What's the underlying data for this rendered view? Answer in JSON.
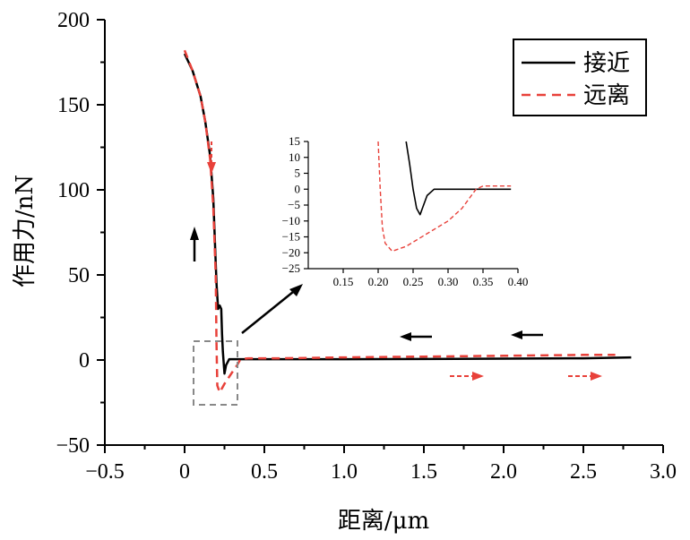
{
  "chart_data": [
    {
      "type": "line",
      "xlabel": "距离/μm",
      "ylabel": "作用力/nN",
      "xlim": [
        -0.5,
        3.0
      ],
      "ylim": [
        -50,
        200
      ],
      "xticks": [
        "−0.5",
        "0",
        "0.5",
        "1.0",
        "1.5",
        "2.0",
        "2.5",
        "3.0"
      ],
      "yticks": [
        "−50",
        "0",
        "50",
        "100",
        "150",
        "200"
      ],
      "legend": {
        "position": "top-right",
        "entries": [
          "接近",
          "远离"
        ]
      },
      "series": [
        {
          "name": "接近",
          "color": "#000000",
          "style": "solid",
          "x": [
            0.0,
            0.05,
            0.1,
            0.13,
            0.16,
            0.18,
            0.19,
            0.2,
            0.21,
            0.22,
            0.23,
            0.235,
            0.24,
            0.25,
            0.26,
            0.28,
            0.35,
            0.6,
            1.0,
            1.5,
            2.0,
            2.5,
            2.8
          ],
          "y": [
            180,
            170,
            155,
            140,
            120,
            95,
            70,
            45,
            30,
            32,
            30,
            15,
            5,
            -8,
            -3,
            0.5,
            0.5,
            0.5,
            0.5,
            0.6,
            0.8,
            1.0,
            1.5
          ]
        },
        {
          "name": "远离",
          "color": "#e8413a",
          "style": "dashed",
          "x": [
            0.0,
            0.05,
            0.1,
            0.13,
            0.16,
            0.18,
            0.195,
            0.2,
            0.205,
            0.22,
            0.25,
            0.3,
            0.33,
            0.35,
            0.4,
            0.6,
            1.0,
            1.5,
            2.0,
            2.5,
            2.7
          ],
          "y": [
            182,
            170,
            155,
            140,
            118,
            90,
            50,
            10,
            -15,
            -19,
            -14,
            -7,
            -3,
            0.5,
            1,
            1,
            1.5,
            2,
            2.5,
            3,
            3
          ]
        }
      ],
      "annotations": [
        {
          "type": "arrow",
          "color": "#000000",
          "meaning": "approach direction"
        },
        {
          "type": "arrow",
          "color": "#e8413a",
          "meaning": "retract direction"
        }
      ]
    },
    {
      "type": "line",
      "inset": true,
      "xlim": [
        0.1,
        0.4
      ],
      "ylim": [
        -25,
        15
      ],
      "xticks": [
        "0.15",
        "0.20",
        "0.25",
        "0.30",
        "0.35",
        "0.40"
      ],
      "yticks": [
        "15",
        "10",
        "5",
        "0",
        "−5",
        "−10",
        "−15",
        "−20",
        "−25"
      ],
      "series": [
        {
          "name": "接近",
          "color": "#000000",
          "style": "solid",
          "x": [
            0.24,
            0.245,
            0.25,
            0.255,
            0.26,
            0.265,
            0.27,
            0.28,
            0.3,
            0.35,
            0.39
          ],
          "y": [
            15,
            8,
            0,
            -6,
            -8,
            -5,
            -2,
            0,
            0,
            0,
            0
          ]
        },
        {
          "name": "远离",
          "color": "#e8413a",
          "style": "dashed",
          "x": [
            0.2,
            0.203,
            0.206,
            0.21,
            0.22,
            0.24,
            0.27,
            0.3,
            0.32,
            0.34,
            0.35,
            0.39
          ],
          "y": [
            15,
            0,
            -12,
            -17,
            -19.5,
            -18,
            -14,
            -10,
            -6,
            0,
            1,
            1
          ]
        }
      ]
    }
  ]
}
